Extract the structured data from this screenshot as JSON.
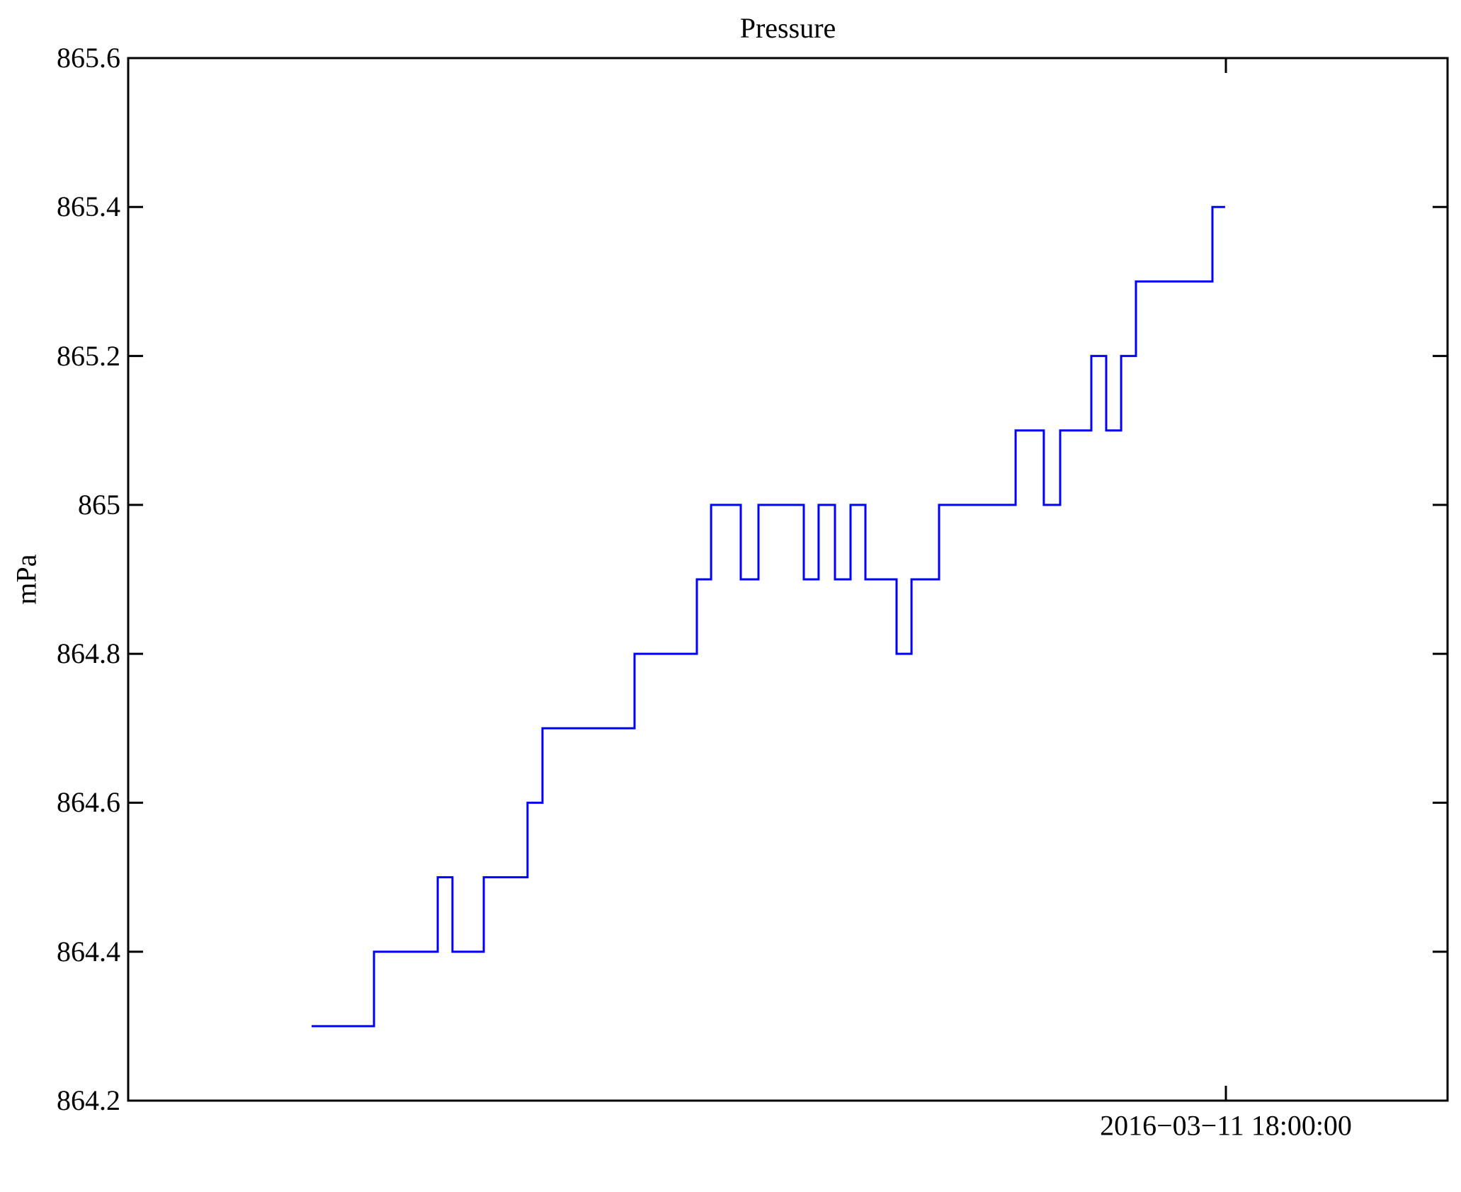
{
  "figure": {
    "title": "Pressure",
    "background_color": "#ffffff",
    "axis_color": "#000000"
  },
  "chart_data": {
    "type": "line",
    "line_style": "steps",
    "title": "Pressure",
    "ylabel": "mPa",
    "xlabel": "",
    "grid": false,
    "legend": "none",
    "line_color": "#0000ff",
    "line_width": 3,
    "ylim": [
      864.2,
      865.6
    ],
    "yticks": [
      {
        "value": 864.2,
        "label": "864.2"
      },
      {
        "value": 864.4,
        "label": "864.4"
      },
      {
        "value": 864.6,
        "label": "864.6"
      },
      {
        "value": 864.8,
        "label": "864.8"
      },
      {
        "value": 865.0,
        "label": "865"
      },
      {
        "value": 865.2,
        "label": "865.2"
      },
      {
        "value": 865.4,
        "label": "865.4"
      },
      {
        "value": 865.6,
        "label": "865.6"
      }
    ],
    "xticks": [
      {
        "pos_frac": 0.832,
        "label": "2016−03−11 18:00:00"
      }
    ],
    "series": [
      {
        "name": "Pressure",
        "unit": "mPa",
        "color": "#0000ff",
        "plateaus_frac_value": [
          [
            0.139,
            0.1863,
            864.3
          ],
          [
            0.1863,
            0.2346,
            864.4
          ],
          [
            0.2346,
            0.2458,
            864.5
          ],
          [
            0.2458,
            0.2695,
            864.4
          ],
          [
            0.2695,
            0.3027,
            864.5
          ],
          [
            0.3027,
            0.314,
            864.6
          ],
          [
            0.314,
            0.3838,
            864.7
          ],
          [
            0.3838,
            0.431,
            864.8
          ],
          [
            0.431,
            0.4418,
            864.9
          ],
          [
            0.4418,
            0.4643,
            865.0
          ],
          [
            0.4643,
            0.4777,
            864.9
          ],
          [
            0.4777,
            0.5121,
            865.0
          ],
          [
            0.5121,
            0.5233,
            864.9
          ],
          [
            0.5233,
            0.5357,
            865.0
          ],
          [
            0.5357,
            0.5475,
            864.9
          ],
          [
            0.5475,
            0.5588,
            865.0
          ],
          [
            0.5588,
            0.5824,
            864.9
          ],
          [
            0.5824,
            0.5937,
            864.8
          ],
          [
            0.5937,
            0.6146,
            864.9
          ],
          [
            0.6146,
            0.6726,
            865.0
          ],
          [
            0.6726,
            0.694,
            865.1
          ],
          [
            0.694,
            0.7064,
            865.0
          ],
          [
            0.7064,
            0.73,
            865.1
          ],
          [
            0.73,
            0.7413,
            865.2
          ],
          [
            0.7413,
            0.7526,
            865.1
          ],
          [
            0.7526,
            0.7638,
            865.2
          ],
          [
            0.7638,
            0.8218,
            865.3
          ],
          [
            0.8218,
            0.8314,
            865.4
          ]
        ]
      }
    ]
  }
}
